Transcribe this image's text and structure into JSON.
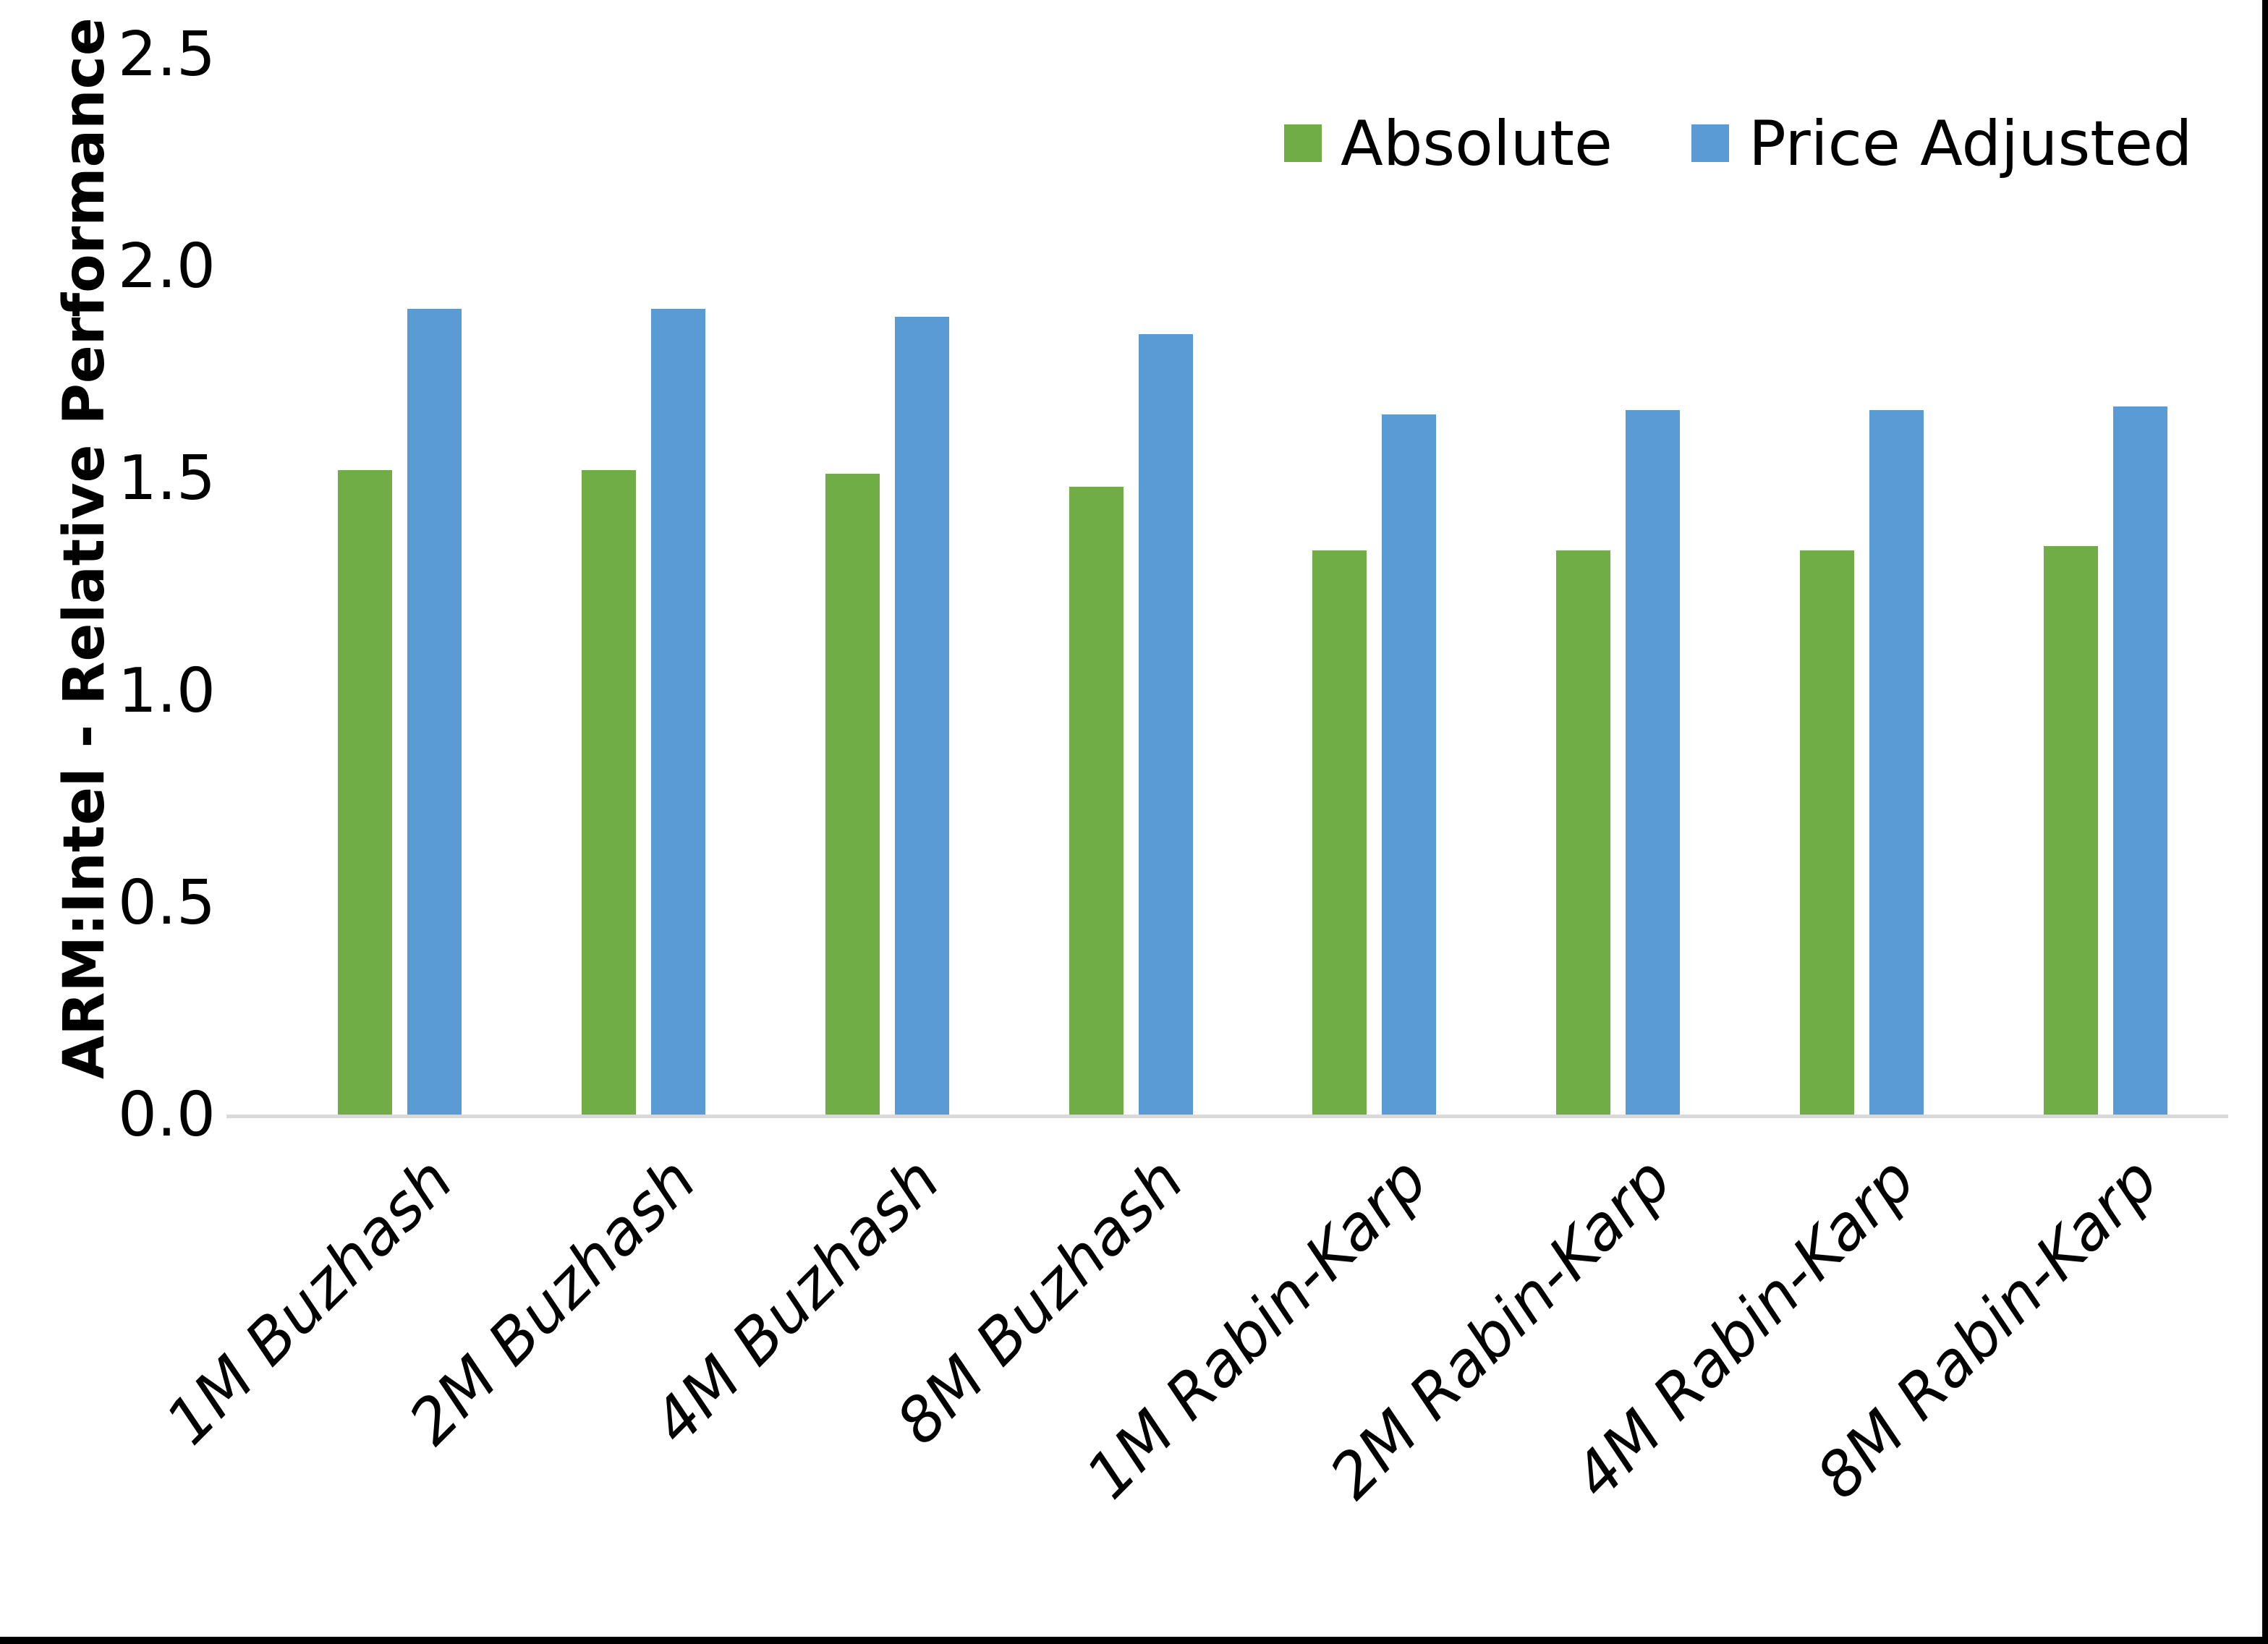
{
  "chart_data": {
    "type": "bar",
    "title": "",
    "xlabel": "",
    "ylabel": "ARM:Intel - Relative Performance",
    "ylim": [
      0,
      2.5
    ],
    "ytick_step": 0.5,
    "ytick_labels": [
      "0.0",
      "0.5",
      "1.0",
      "1.5",
      "2.0",
      "2.5"
    ],
    "grid": false,
    "legend_position": "top-right-inside",
    "categories": [
      "1M Buzhash",
      "2M Buzhash",
      "4M Buzhash",
      "8M Buzhash",
      "1M Rabin-Karp",
      "2M Rabin-Karp",
      "4M Rabin-Karp",
      "8M Rabin-Karp"
    ],
    "series": [
      {
        "name": "Absolute",
        "color": "#70AD47",
        "values": [
          1.52,
          1.52,
          1.51,
          1.48,
          1.33,
          1.33,
          1.33,
          1.34
        ]
      },
      {
        "name": "Price Adjusted",
        "color": "#5B9BD5",
        "values": [
          1.9,
          1.9,
          1.88,
          1.84,
          1.65,
          1.66,
          1.66,
          1.67
        ]
      }
    ],
    "colors": {
      "axis_line": "#D9D9D9",
      "text": "#000000",
      "figure_border": "#000000",
      "background": "#FFFFFF"
    }
  }
}
